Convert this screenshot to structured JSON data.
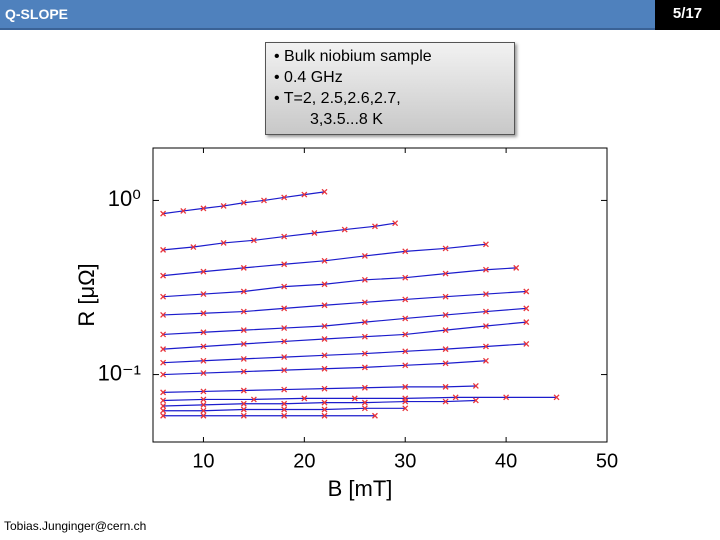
{
  "header": {
    "title": "Q-SLOPE",
    "page": "5/17"
  },
  "info_box": {
    "items": [
      "Bulk niobium sample",
      "0.4 GHz",
      "T=2, 2.5,2.6,2.7,"
    ],
    "continuation": "3,3.5...8 K"
  },
  "footer": "Tobias.Junginger@cern.ch",
  "chart_data": {
    "type": "scatter",
    "x_label": "B [mT]",
    "y_label": "R [μΩ]",
    "xlim": [
      5,
      50
    ],
    "xticks": [
      10,
      20,
      30,
      40,
      50
    ],
    "ylim": [
      0.041,
      2
    ],
    "yscale": "log",
    "yticks": [
      {
        "value": 1,
        "label": "10⁰"
      },
      {
        "value": 0.1,
        "label": "10⁻¹"
      }
    ],
    "point_color": "#e8343c",
    "line_color": "#1c1ccc",
    "series": [
      {
        "x": [
          6,
          8,
          10,
          12,
          14,
          16,
          18,
          20,
          22
        ],
        "values": [
          0.84,
          0.87,
          0.9,
          0.93,
          0.97,
          1.0,
          1.04,
          1.08,
          1.12
        ]
      },
      {
        "x": [
          6,
          9,
          12,
          15,
          18,
          21,
          24,
          27,
          29
        ],
        "values": [
          0.52,
          0.54,
          0.57,
          0.59,
          0.62,
          0.65,
          0.68,
          0.71,
          0.74
        ]
      },
      {
        "x": [
          6,
          10,
          14,
          18,
          22,
          26,
          30,
          34,
          38
        ],
        "values": [
          0.37,
          0.39,
          0.41,
          0.43,
          0.45,
          0.48,
          0.51,
          0.53,
          0.56
        ]
      },
      {
        "x": [
          6,
          10,
          14,
          18,
          22,
          26,
          30,
          34,
          38,
          41
        ],
        "values": [
          0.28,
          0.29,
          0.3,
          0.32,
          0.33,
          0.35,
          0.36,
          0.38,
          0.4,
          0.41
        ]
      },
      {
        "x": [
          6,
          10,
          14,
          18,
          22,
          26,
          30,
          34,
          38,
          42
        ],
        "values": [
          0.22,
          0.225,
          0.23,
          0.24,
          0.25,
          0.26,
          0.27,
          0.28,
          0.29,
          0.3
        ]
      },
      {
        "x": [
          6,
          10,
          14,
          18,
          22,
          26,
          30,
          34,
          38,
          42
        ],
        "values": [
          0.17,
          0.175,
          0.18,
          0.185,
          0.19,
          0.2,
          0.21,
          0.22,
          0.23,
          0.24
        ]
      },
      {
        "x": [
          6,
          10,
          14,
          18,
          22,
          26,
          30,
          34,
          38,
          42
        ],
        "values": [
          0.14,
          0.145,
          0.15,
          0.155,
          0.16,
          0.165,
          0.17,
          0.18,
          0.19,
          0.2
        ]
      },
      {
        "x": [
          6,
          10,
          14,
          18,
          22,
          26,
          30,
          34,
          38,
          42
        ],
        "values": [
          0.117,
          0.12,
          0.123,
          0.126,
          0.129,
          0.132,
          0.136,
          0.14,
          0.145,
          0.15
        ]
      },
      {
        "x": [
          6,
          10,
          14,
          18,
          22,
          26,
          30,
          34,
          38
        ],
        "values": [
          0.1,
          0.102,
          0.104,
          0.106,
          0.108,
          0.11,
          0.113,
          0.116,
          0.12
        ]
      },
      {
        "x": [
          6,
          10,
          14,
          18,
          22,
          26,
          30,
          34,
          37
        ],
        "values": [
          0.079,
          0.08,
          0.081,
          0.082,
          0.083,
          0.084,
          0.085,
          0.085,
          0.086
        ]
      },
      {
        "x": [
          6,
          10,
          15,
          20,
          25,
          30,
          35,
          40,
          45
        ],
        "values": [
          0.071,
          0.072,
          0.072,
          0.073,
          0.073,
          0.073,
          0.074,
          0.074,
          0.074
        ]
      },
      {
        "x": [
          6,
          10,
          14,
          18,
          22,
          26,
          30,
          34,
          37
        ],
        "values": [
          0.066,
          0.067,
          0.068,
          0.068,
          0.069,
          0.069,
          0.07,
          0.07,
          0.071
        ]
      },
      {
        "x": [
          6,
          10,
          14,
          18,
          22,
          26,
          30
        ],
        "values": [
          0.062,
          0.062,
          0.063,
          0.063,
          0.063,
          0.064,
          0.064
        ]
      },
      {
        "x": [
          6,
          10,
          14,
          18,
          22,
          27
        ],
        "values": [
          0.058,
          0.058,
          0.058,
          0.058,
          0.058,
          0.058
        ]
      }
    ]
  }
}
